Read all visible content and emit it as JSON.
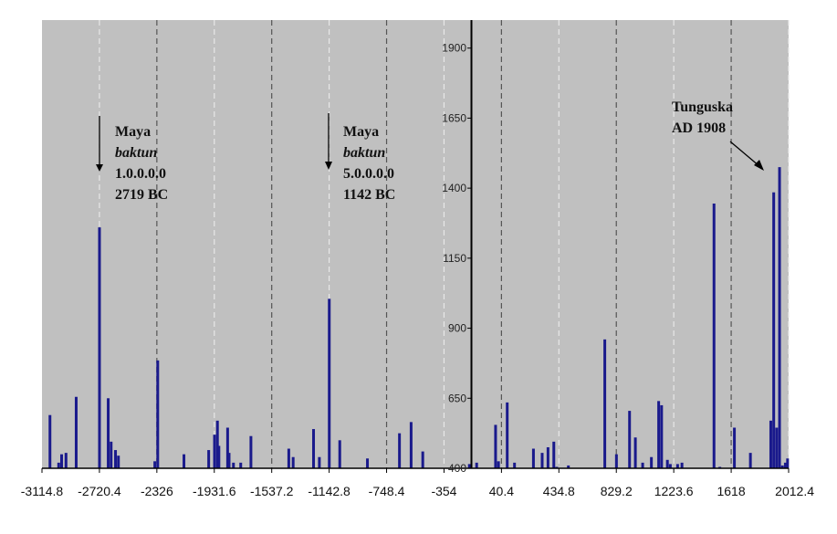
{
  "chart_data": {
    "type": "bar",
    "title": "",
    "xlabel": "",
    "ylabel": "",
    "xlim": [
      -3114.8,
      2012.4
    ],
    "ylim": [
      400,
      2000
    ],
    "grid": "vertical dashed lines at each x tick",
    "x_ticks": [
      -3114.8,
      -2720.4,
      -2326,
      -1931.6,
      -1537.2,
      -1142.8,
      -748.4,
      -354,
      40.4,
      434.8,
      829.2,
      1223.6,
      1618,
      2012.4
    ],
    "x_tick_labels": [
      "-3114.8",
      "-2720.4",
      "-2326",
      "-1931.6",
      "-1537.2",
      "-1142.8",
      "-748.4",
      "-354",
      "40.4",
      "434.8",
      "829.2",
      "1223.6",
      "1618",
      "2012.4"
    ],
    "y_ticks": [
      400,
      650,
      900,
      1150,
      1400,
      1650,
      1900
    ],
    "y_tick_labels": [
      "400",
      "650",
      "900",
      "1150",
      "1400",
      "1650",
      "1900"
    ],
    "series": [
      {
        "color": "#1a1a8c",
        "x": [
          -3060,
          -3000,
          -2980,
          -2950,
          -2880,
          -2720,
          -2660,
          -2640,
          -2610,
          -2590,
          -2340,
          -2320,
          -2140,
          -1970,
          -1930,
          -1910,
          -1900,
          -1840,
          -1830,
          -1800,
          -1750,
          -1680,
          -1420,
          -1390,
          -1250,
          -1210,
          -1142,
          -1070,
          -880,
          -660,
          -580,
          -500,
          -180,
          -130,
          0,
          20,
          80,
          130,
          260,
          320,
          360,
          400,
          420,
          500,
          750,
          830,
          920,
          960,
          1010,
          1070,
          1120,
          1140,
          1180,
          1200,
          1250,
          1280,
          1500,
          1540,
          1640,
          1750,
          1890,
          1910,
          1930,
          1950,
          1970,
          1990,
          2005
        ],
        "y": [
          590,
          420,
          450,
          455,
          655,
          1260,
          650,
          495,
          465,
          445,
          425,
          785,
          450,
          465,
          520,
          570,
          480,
          545,
          455,
          420,
          420,
          515,
          470,
          440,
          540,
          440,
          1005,
          500,
          435,
          525,
          565,
          460,
          415,
          420,
          555,
          425,
          635,
          420,
          470,
          455,
          475,
          495,
          405,
          410,
          860,
          450,
          605,
          510,
          420,
          440,
          640,
          625,
          430,
          415,
          415,
          420,
          1345,
          405,
          545,
          455,
          570,
          1385,
          545,
          1475,
          410,
          420,
          435
        ]
      }
    ],
    "annotations": [
      {
        "lines": [
          "Maya",
          "baktun",
          "1.0.0.0.0",
          "2719 BC"
        ],
        "arrow_to": -2720.4
      },
      {
        "lines": [
          "Maya",
          "baktun",
          "5.0.0.0.0",
          "1142 BC"
        ],
        "arrow_to": -1142.8
      },
      {
        "lines": [
          "Tunguska",
          "AD 1908"
        ],
        "arrow_to": 1908
      }
    ]
  }
}
